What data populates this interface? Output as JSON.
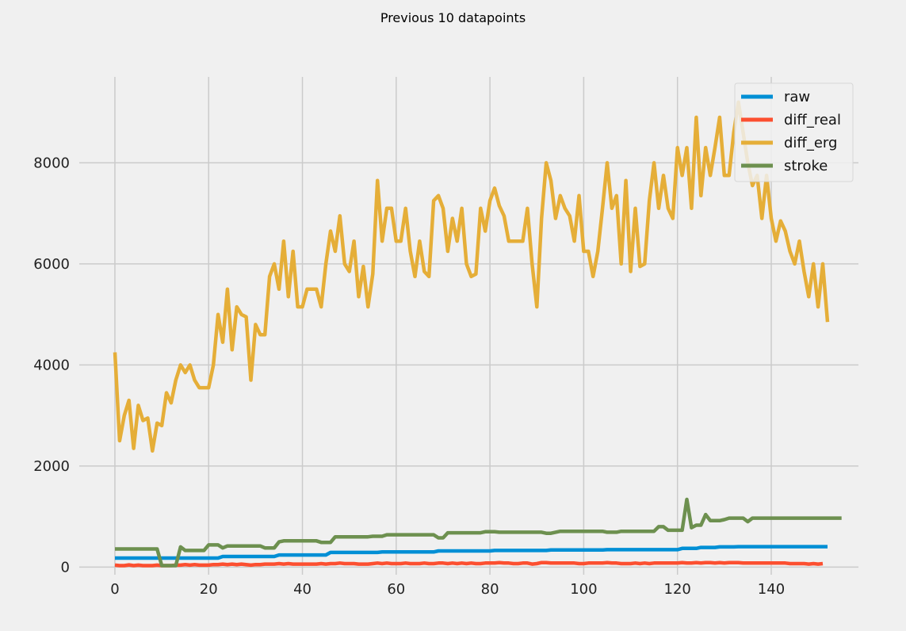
{
  "figure": {
    "title": "Previous 10 datapoints"
  },
  "chart_data": {
    "type": "line",
    "title": "Previous 10 datapoints",
    "xlabel": "",
    "ylabel": "",
    "xlim": [
      -7.6,
      158.6
    ],
    "ylim": [
      -150,
      9700
    ],
    "xticks": [
      0,
      20,
      40,
      60,
      80,
      100,
      120,
      140
    ],
    "yticks": [
      0,
      2000,
      4000,
      6000,
      8000
    ],
    "grid": true,
    "legend_position": "top-right",
    "x_start": 0,
    "x_step": 1,
    "series": [
      {
        "name": "raw",
        "color": "#008fd5",
        "values": [
          180,
          180,
          180,
          180,
          180,
          180,
          180,
          180,
          180,
          180,
          180,
          180,
          180,
          180,
          180,
          180,
          180,
          180,
          180,
          180,
          180,
          180,
          180,
          210,
          210,
          210,
          210,
          210,
          210,
          210,
          210,
          210,
          210,
          210,
          210,
          240,
          240,
          240,
          240,
          240,
          240,
          240,
          240,
          240,
          240,
          240,
          290,
          290,
          290,
          290,
          290,
          290,
          290,
          290,
          290,
          290,
          290,
          300,
          300,
          300,
          300,
          300,
          300,
          300,
          300,
          300,
          300,
          300,
          300,
          320,
          320,
          320,
          320,
          320,
          320,
          320,
          320,
          320,
          320,
          320,
          320,
          330,
          330,
          330,
          330,
          330,
          330,
          330,
          330,
          330,
          330,
          330,
          330,
          340,
          340,
          340,
          340,
          340,
          340,
          340,
          340,
          340,
          340,
          340,
          340,
          345,
          345,
          345,
          345,
          345,
          345,
          345,
          345,
          345,
          345,
          345,
          345,
          345,
          345,
          345,
          345,
          370,
          370,
          370,
          370,
          390,
          390,
          390,
          390,
          400,
          400,
          400,
          400,
          405,
          405,
          405,
          405,
          405,
          405,
          405,
          405,
          405,
          405,
          405,
          405,
          405,
          405,
          405,
          405,
          405,
          405,
          405,
          405
        ]
      },
      {
        "name": "diff_real",
        "color": "#fc4f30",
        "values": [
          40,
          30,
          30,
          45,
          30,
          40,
          30,
          30,
          30,
          40,
          30,
          30,
          30,
          40,
          40,
          50,
          40,
          50,
          40,
          40,
          40,
          50,
          50,
          60,
          50,
          60,
          50,
          60,
          50,
          40,
          50,
          50,
          60,
          60,
          60,
          70,
          60,
          70,
          60,
          60,
          60,
          60,
          60,
          60,
          70,
          60,
          70,
          70,
          80,
          70,
          70,
          70,
          60,
          60,
          60,
          70,
          80,
          70,
          80,
          70,
          70,
          70,
          80,
          70,
          70,
          70,
          80,
          70,
          70,
          80,
          80,
          70,
          80,
          70,
          80,
          70,
          80,
          70,
          70,
          80,
          80,
          80,
          90,
          80,
          80,
          70,
          70,
          80,
          80,
          60,
          70,
          90,
          90,
          80,
          80,
          80,
          80,
          80,
          80,
          70,
          70,
          80,
          80,
          80,
          80,
          90,
          80,
          80,
          70,
          70,
          70,
          80,
          70,
          80,
          70,
          80,
          80,
          80,
          80,
          80,
          80,
          90,
          80,
          80,
          90,
          80,
          90,
          90,
          80,
          90,
          80,
          90,
          90,
          90,
          80,
          80,
          80,
          80,
          80,
          80,
          80,
          80,
          80,
          80,
          70,
          70,
          70,
          70,
          60,
          70,
          60,
          70
        ]
      },
      {
        "name": "diff_erg",
        "color": "#e5ae38",
        "values": [
          4250,
          2500,
          3000,
          3300,
          2350,
          3200,
          2900,
          2950,
          2300,
          2850,
          2800,
          3450,
          3250,
          3700,
          4000,
          3850,
          4000,
          3700,
          3550,
          3550,
          3550,
          4000,
          5000,
          4450,
          5500,
          4300,
          5150,
          5000,
          4950,
          3700,
          4800,
          4600,
          4600,
          5750,
          6000,
          5500,
          6450,
          5350,
          6250,
          5150,
          5150,
          5500,
          5500,
          5500,
          5150,
          6000,
          6650,
          6250,
          6950,
          6000,
          5850,
          6450,
          5350,
          5950,
          5150,
          5800,
          7650,
          6450,
          7100,
          7100,
          6450,
          6450,
          7100,
          6250,
          5750,
          6450,
          5850,
          5750,
          7250,
          7350,
          7100,
          6250,
          6900,
          6450,
          7100,
          6000,
          5750,
          5800,
          7100,
          6650,
          7250,
          7500,
          7150,
          6950,
          6450,
          6450,
          6450,
          6450,
          7100,
          6000,
          5150,
          6900,
          8000,
          7650,
          6900,
          7350,
          7100,
          6950,
          6450,
          7350,
          6250,
          6250,
          5750,
          6250,
          7100,
          8000,
          7100,
          7350,
          6000,
          7650,
          5850,
          7100,
          5950,
          6000,
          7250,
          8000,
          7100,
          7750,
          7100,
          6900,
          8300,
          7750,
          8300,
          7100,
          8900,
          7350,
          8300,
          7750,
          8300,
          8900,
          7750,
          7750,
          8600,
          9200,
          8600,
          8000,
          7550,
          7750,
          6900,
          7750,
          6900,
          6450,
          6850,
          6650,
          6250,
          6000,
          6450,
          5850,
          5350,
          6000,
          5150,
          6000,
          4850
        ]
      },
      {
        "name": "stroke",
        "color": "#6d904f",
        "values": [
          360,
          360,
          360,
          360,
          360,
          360,
          360,
          360,
          360,
          360,
          30,
          30,
          30,
          30,
          400,
          330,
          330,
          330,
          330,
          330,
          440,
          440,
          440,
          380,
          420,
          420,
          420,
          420,
          420,
          420,
          420,
          420,
          380,
          380,
          380,
          500,
          520,
          520,
          520,
          520,
          520,
          520,
          520,
          520,
          490,
          490,
          490,
          600,
          600,
          600,
          600,
          600,
          600,
          600,
          600,
          610,
          610,
          610,
          640,
          640,
          640,
          640,
          640,
          640,
          640,
          640,
          640,
          640,
          640,
          580,
          580,
          680,
          680,
          680,
          680,
          680,
          680,
          680,
          680,
          700,
          700,
          700,
          690,
          690,
          690,
          690,
          690,
          690,
          690,
          690,
          690,
          690,
          670,
          670,
          690,
          710,
          710,
          710,
          710,
          710,
          710,
          710,
          710,
          710,
          710,
          690,
          690,
          690,
          710,
          710,
          710,
          710,
          710,
          710,
          710,
          710,
          800,
          800,
          730,
          730,
          730,
          730,
          1340,
          780,
          830,
          830,
          1040,
          920,
          920,
          920,
          940,
          970,
          970,
          970,
          970,
          900,
          970,
          970,
          970,
          970,
          970,
          970,
          970,
          970,
          970,
          970,
          970,
          970,
          970,
          970,
          970,
          970,
          970,
          970,
          970,
          970
        ]
      }
    ]
  }
}
